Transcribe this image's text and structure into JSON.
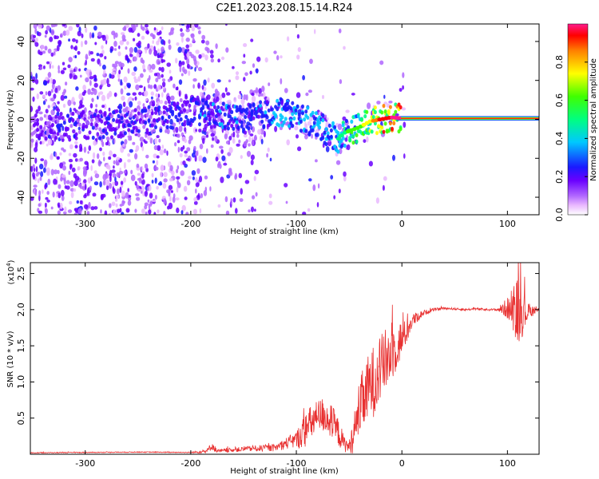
{
  "title": "C2E1.2023.208.15.14.R24",
  "chart_data": [
    {
      "type": "heatmap",
      "xlabel": "Height of straight line (km)",
      "ylabel": "Frequency (Hz)",
      "xlim": [
        -352,
        130
      ],
      "ylim": [
        -49,
        49
      ],
      "xticks": [
        -300,
        -200,
        -100,
        0,
        100
      ],
      "xtick_labels": [
        "-300",
        "-200",
        "-100",
        "0",
        "100"
      ],
      "yticks": [
        -40,
        -20,
        0,
        20,
        40
      ],
      "ytick_labels": [
        "-40",
        "-20",
        "0",
        "20",
        "40"
      ],
      "colorbar": {
        "label": "Normalized spectral amplitude",
        "range": [
          0,
          1
        ],
        "ticks": [
          0.0,
          0.2,
          0.4,
          0.6,
          0.8
        ],
        "tick_labels": [
          "0.0",
          "0.2",
          "0.4",
          "0.6",
          "0.8"
        ],
        "colors": [
          "#ffffff",
          "#e9b8ff",
          "#b066ff",
          "#6a00ff",
          "#1a1aff",
          "#00c8ff",
          "#00ff80",
          "#40ff00",
          "#ffff00",
          "#ff8000",
          "#ff0000",
          "#ff1a8c"
        ]
      },
      "ridge": {
        "description_points_x": [
          -350,
          -300,
          -250,
          -200,
          -190,
          -150,
          -120,
          -100,
          -80,
          -60,
          -55,
          -40,
          -30,
          -20,
          -10,
          0,
          50,
          100,
          130
        ],
        "frequency_hz": [
          -5,
          -3,
          -2,
          5,
          3,
          0,
          4,
          2,
          -3,
          -10,
          -7,
          -4,
          -1,
          0,
          1,
          0.5,
          0.5,
          0.5,
          0.5
        ],
        "peak_amplitude": [
          0.25,
          0.3,
          0.3,
          0.35,
          0.4,
          0.4,
          0.5,
          0.5,
          0.5,
          0.5,
          0.6,
          0.7,
          0.85,
          0.95,
          1.0,
          1.0,
          1.0,
          1.0,
          1.0
        ]
      }
    },
    {
      "type": "line",
      "xlabel": "Height of straight line (km)",
      "ylabel": "SNR (10 * v/v)",
      "multiplier_label": "(x10",
      "multiplier_exp": "4",
      "multiplier_close": ")",
      "xlim": [
        -352,
        130
      ],
      "ylim": [
        0,
        26500
      ],
      "xticks": [
        -300,
        -200,
        -100,
        0,
        100
      ],
      "xtick_labels": [
        "-300",
        "-200",
        "-100",
        "0",
        "100"
      ],
      "yticks": [
        5000,
        10000,
        15000,
        20000,
        25000
      ],
      "ytick_labels": [
        "0.5",
        "1.0",
        "1.5",
        "2.0",
        "2.5"
      ],
      "color": "#e83030",
      "series": [
        {
          "name": "SNR",
          "x": [
            -352,
            -300,
            -250,
            -200,
            -185,
            -180,
            -175,
            -160,
            -140,
            -120,
            -110,
            -100,
            -95,
            -90,
            -85,
            -80,
            -75,
            -70,
            -65,
            -60,
            -55,
            -50,
            -45,
            -40,
            -35,
            -30,
            -25,
            -20,
            -15,
            -10,
            -5,
            0,
            5,
            10,
            20,
            30,
            40,
            50,
            60,
            70,
            80,
            90,
            100,
            105,
            110,
            115,
            120,
            130
          ],
          "y": [
            200,
            250,
            300,
            250,
            400,
            1200,
            400,
            600,
            800,
            900,
            1500,
            2000,
            2800,
            3500,
            4500,
            5000,
            5500,
            5000,
            4000,
            3000,
            1500,
            1000,
            3000,
            6500,
            8000,
            9500,
            10500,
            12000,
            13000,
            14000,
            15000,
            16000,
            17000,
            18500,
            19500,
            20000,
            20200,
            20100,
            20000,
            20100,
            20000,
            20000,
            20200,
            19800,
            20000,
            19500,
            19800,
            19900
          ],
          "noise_amplitude": [
            50,
            60,
            60,
            60,
            300,
            600,
            300,
            300,
            400,
            500,
            800,
            1200,
            2000,
            2500,
            2500,
            2500,
            2500,
            2500,
            2500,
            2000,
            1200,
            800,
            3000,
            4000,
            4500,
            5000,
            5000,
            4500,
            4500,
            4000,
            3500,
            2500,
            1500,
            1000,
            400,
            200,
            150,
            150,
            150,
            150,
            150,
            150,
            1500,
            2500,
            5000,
            3000,
            1000,
            300
          ]
        }
      ]
    }
  ]
}
